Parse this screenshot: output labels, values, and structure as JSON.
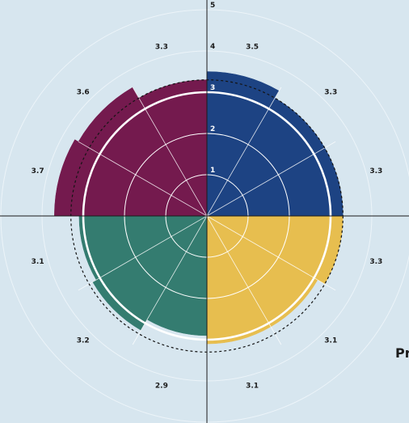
{
  "chart_data": {
    "type": "polar-bar",
    "r_max": 5,
    "radial_ticks": [
      "1",
      "2",
      "3",
      "4",
      "5"
    ],
    "reference_value": 3,
    "average_value": 3.3,
    "segments": [
      {
        "value": 3.5,
        "label": "3.5",
        "color": "#1d4383",
        "quadrant": "top-right"
      },
      {
        "value": 3.3,
        "label": "3.3",
        "color": "#1d4383",
        "quadrant": "top-right"
      },
      {
        "value": 3.3,
        "label": "3.3",
        "color": "#1d4383",
        "quadrant": "top-right"
      },
      {
        "value": 3.3,
        "label": "3.3",
        "color": "#e7be4f",
        "quadrant": "bottom-right"
      },
      {
        "value": 3.1,
        "label": "3.1",
        "color": "#e7be4f",
        "quadrant": "bottom-right"
      },
      {
        "value": 3.1,
        "label": "3.1",
        "color": "#e7be4f",
        "quadrant": "bottom-right"
      },
      {
        "value": 2.9,
        "label": "2.9",
        "color": "#347c70",
        "quadrant": "bottom-left"
      },
      {
        "value": 3.2,
        "label": "3.2",
        "color": "#347c70",
        "quadrant": "bottom-left"
      },
      {
        "value": 3.1,
        "label": "3.1",
        "color": "#347c70",
        "quadrant": "bottom-left"
      },
      {
        "value": 3.7,
        "label": "3.7",
        "color": "#741a4e",
        "quadrant": "top-left"
      },
      {
        "value": 3.6,
        "label": "3.6",
        "color": "#741a4e",
        "quadrant": "top-left"
      },
      {
        "value": 3.3,
        "label": "3.3",
        "color": "#741a4e",
        "quadrant": "top-left"
      }
    ],
    "grid": true,
    "legend": "none"
  },
  "corner_text": "Pr",
  "colors": {
    "background": "#d7e6ef",
    "axis": "#1b1b1b",
    "grid": "#ffffff"
  }
}
